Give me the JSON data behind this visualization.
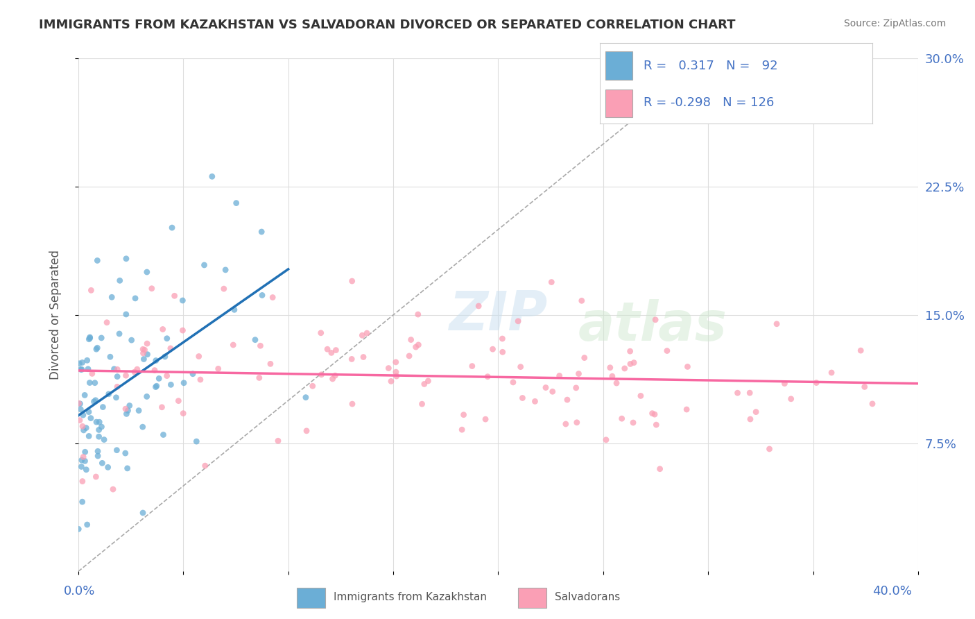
{
  "title": "IMMIGRANTS FROM KAZAKHSTAN VS SALVADORAN DIVORCED OR SEPARATED CORRELATION CHART",
  "source": "Source: ZipAtlas.com",
  "legend1_label": "Immigrants from Kazakhstan",
  "legend2_label": "Salvadorans",
  "R1": 0.317,
  "N1": 92,
  "R2": -0.298,
  "N2": 126,
  "blue_color": "#6baed6",
  "pink_color": "#fa9fb5",
  "blue_line_color": "#2171b5",
  "pink_line_color": "#f768a1",
  "watermark_zip": "ZIP",
  "watermark_atlas": "atlas",
  "xmin": 0.0,
  "xmax": 0.4,
  "ymin": 0.0,
  "ymax": 0.3,
  "blue_scatter_seed": 42,
  "pink_scatter_seed": 123
}
